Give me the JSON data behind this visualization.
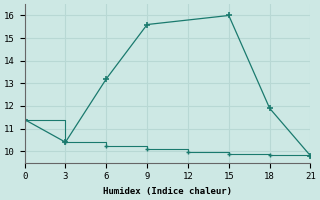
{
  "xlabel": "Humidex (Indice chaleur)",
  "line1_x": [
    0,
    3,
    6,
    9,
    15,
    18,
    21
  ],
  "line1_y": [
    11.4,
    10.4,
    13.2,
    15.6,
    16.0,
    11.9,
    9.8
  ],
  "line2_x": [
    0,
    3,
    6,
    9,
    12,
    15,
    18,
    21
  ],
  "line2_y": [
    11.4,
    10.4,
    10.25,
    10.1,
    9.98,
    9.88,
    9.82,
    9.78
  ],
  "line_color": "#1a7a6e",
  "bg_color": "#cde8e4",
  "grid_color": "#b8d8d4",
  "xlim": [
    0,
    21
  ],
  "ylim": [
    9.5,
    16.5
  ],
  "xticks": [
    0,
    3,
    6,
    9,
    12,
    15,
    18,
    21
  ],
  "yticks": [
    10,
    11,
    12,
    13,
    14,
    15,
    16
  ]
}
